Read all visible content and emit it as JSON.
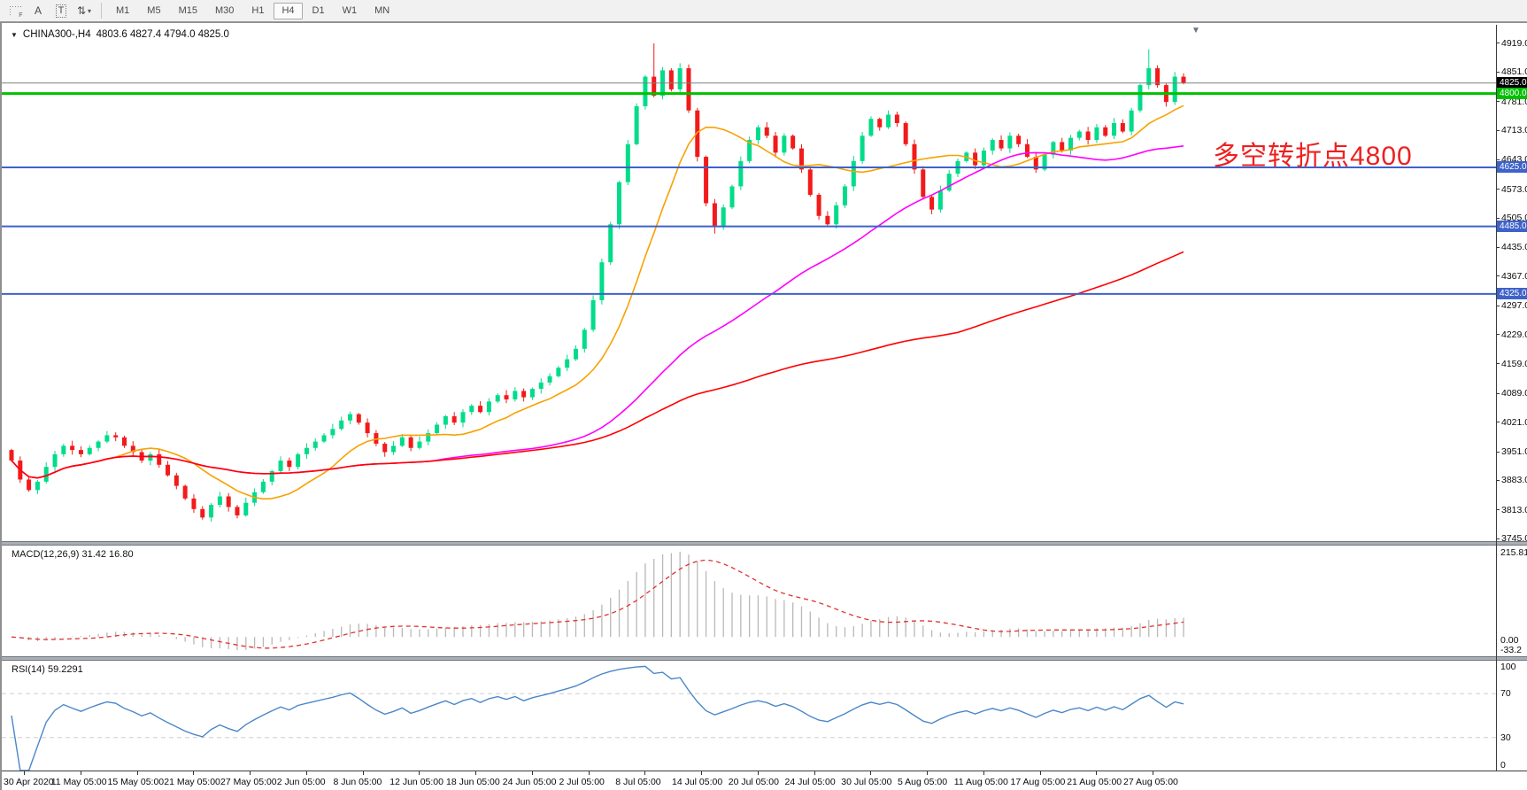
{
  "toolbar": {
    "tools": [
      {
        "name": "grid-f-icon",
        "glyph": "F"
      },
      {
        "name": "label-a-icon",
        "glyph": "A"
      },
      {
        "name": "text-t-icon",
        "glyph": "T"
      },
      {
        "name": "arrows-icon",
        "glyph": "⇅"
      }
    ],
    "dropdown_caret": "▾",
    "timeframes": [
      "M1",
      "M5",
      "M15",
      "M30",
      "H1",
      "H4",
      "D1",
      "W1",
      "MN"
    ],
    "active_timeframe": "H4"
  },
  "chart": {
    "collapse_icon": "▼",
    "title": "CHINA300-,H4",
    "ohlc_text": "4803.6 4827.4 4794.0 4825.0",
    "shift_marker": "▼",
    "annotation": {
      "text": "多空转折点4800",
      "color": "#ee2020"
    },
    "colors": {
      "candle_up": "#00dc8a",
      "candle_down": "#f21a1a",
      "ma_fast": "#f7a200",
      "ma_mid": "#ff00ff",
      "ma_slow": "#ff0000",
      "hline_gray": "#808080",
      "hline_green": "#00c000",
      "hline_blue": "#3e62c9",
      "macd_hist": "#b8b8b8",
      "macd_signal": "#e03030",
      "rsi_line": "#4a87c8"
    },
    "price_axis_labels": [
      "4919.0",
      "4851.0",
      "4781.0",
      "4713.0",
      "4643.0",
      "4573.0",
      "4505.0",
      "4435.0",
      "4367.0",
      "4297.0",
      "4229.0",
      "4159.0",
      "4089.0",
      "4021.0",
      "3951.0",
      "3883.0",
      "3813.0",
      "3745.0"
    ],
    "price_badges": [
      {
        "text": "4825.0",
        "price": 4825,
        "bg": "#000000",
        "fg": "#ffffff"
      },
      {
        "text": "4800.0",
        "price": 4800,
        "bg": "#00c000",
        "fg": "#ffffff"
      },
      {
        "text": "4625.0",
        "price": 4625,
        "bg": "#3e62c9",
        "fg": "#ffffff"
      },
      {
        "text": "4485.0",
        "price": 4485,
        "bg": "#3e62c9",
        "fg": "#ffffff"
      },
      {
        "text": "4325.0",
        "price": 4325,
        "bg": "#3e62c9",
        "fg": "#ffffff"
      }
    ],
    "hlines": [
      {
        "price": 4825,
        "color": "#808080",
        "w": 1
      },
      {
        "price": 4800,
        "color": "#00c000",
        "w": 3
      },
      {
        "price": 4625,
        "color": "#3e62c9",
        "w": 2
      },
      {
        "price": 4485,
        "color": "#3e62c9",
        "w": 2
      },
      {
        "price": 4325,
        "color": "#3e62c9",
        "w": 2
      }
    ]
  },
  "macd_panel": {
    "label": "MACD(12,26,9) 31.42 16.80",
    "axis_labels": [
      "215.81",
      "0.00",
      "-33.2"
    ]
  },
  "rsi_panel": {
    "label": "RSI(14) 59.2291",
    "axis_labels": [
      "100",
      "70",
      "30",
      "0"
    ]
  },
  "chart_data": {
    "type": "candlestick",
    "symbol": "CHINA300-",
    "timeframe": "H4",
    "current_ohlc": {
      "open": 4803.6,
      "high": 4827.4,
      "low": 4794.0,
      "close": 4825.0
    },
    "price_axis_range": [
      3739,
      4963
    ],
    "horizontal_levels": [
      4825,
      4800,
      4625,
      4485,
      4325
    ],
    "first_open": 3955,
    "closes": [
      3930,
      3885,
      3860,
      3880,
      3915,
      3945,
      3965,
      3955,
      3945,
      3960,
      3975,
      3990,
      3985,
      3965,
      3950,
      3930,
      3945,
      3920,
      3895,
      3870,
      3840,
      3815,
      3795,
      3825,
      3845,
      3820,
      3800,
      3830,
      3855,
      3880,
      3905,
      3930,
      3915,
      3945,
      3960,
      3975,
      3990,
      4005,
      4025,
      4040,
      4020,
      3995,
      3970,
      3950,
      3965,
      3985,
      3960,
      3975,
      3995,
      4015,
      4035,
      4020,
      4045,
      4060,
      4045,
      4070,
      4085,
      4075,
      4095,
      4080,
      4100,
      4115,
      4130,
      4150,
      4170,
      4195,
      4240,
      4310,
      4400,
      4490,
      4590,
      4680,
      4770,
      4840,
      4795,
      4855,
      4810,
      4860,
      4760,
      4650,
      4540,
      4485,
      4530,
      4580,
      4640,
      4690,
      4720,
      4700,
      4660,
      4700,
      4670,
      4620,
      4560,
      4510,
      4490,
      4535,
      4580,
      4640,
      4700,
      4740,
      4720,
      4750,
      4730,
      4680,
      4620,
      4555,
      4525,
      4570,
      4610,
      4640,
      4660,
      4630,
      4665,
      4690,
      4670,
      4700,
      4680,
      4650,
      4620,
      4655,
      4685,
      4665,
      4695,
      4710,
      4690,
      4720,
      4700,
      4730,
      4710,
      4760,
      4820,
      4860,
      4820,
      4780,
      4840,
      4825
    ],
    "wick_overrides": {
      "74": {
        "high": 4919
      },
      "131": {
        "high": 4905
      },
      "81": {
        "low": 4468
      }
    },
    "moving_averages": [
      {
        "name": "ma-fast",
        "period": 12,
        "color": "#f7a200"
      },
      {
        "name": "ma-mid",
        "period": 48,
        "color": "#ff00ff"
      },
      {
        "name": "ma-slow",
        "period": 110,
        "color": "#ff0000"
      }
    ],
    "indicators": {
      "macd": {
        "fast": 12,
        "slow": 26,
        "signal": 9,
        "current_values": [
          31.42,
          16.8
        ],
        "axis_max": 215.81,
        "axis_min": -33.2
      },
      "rsi": {
        "period": 14,
        "current_value": 59.2291,
        "levels": [
          70,
          30
        ],
        "axis": [
          100,
          70,
          30,
          0
        ]
      }
    },
    "x_ticks": [
      "30 Apr 2020",
      "11 May 05:00",
      "15 May 05:00",
      "21 May 05:00",
      "27 May 05:00",
      "2 Jun 05:00",
      "8 Jun 05:00",
      "12 Jun 05:00",
      "18 Jun 05:00",
      "24 Jun 05:00",
      "2 Jul 05:00",
      "8 Jul 05:00",
      "14 Jul 05:00",
      "20 Jul 05:00",
      "24 Jul 05:00",
      "30 Jul 05:00",
      "5 Aug 05:00",
      "11 Aug 05:00",
      "17 Aug 05:00",
      "21 Aug 05:00",
      "27 Aug 05:00"
    ]
  }
}
